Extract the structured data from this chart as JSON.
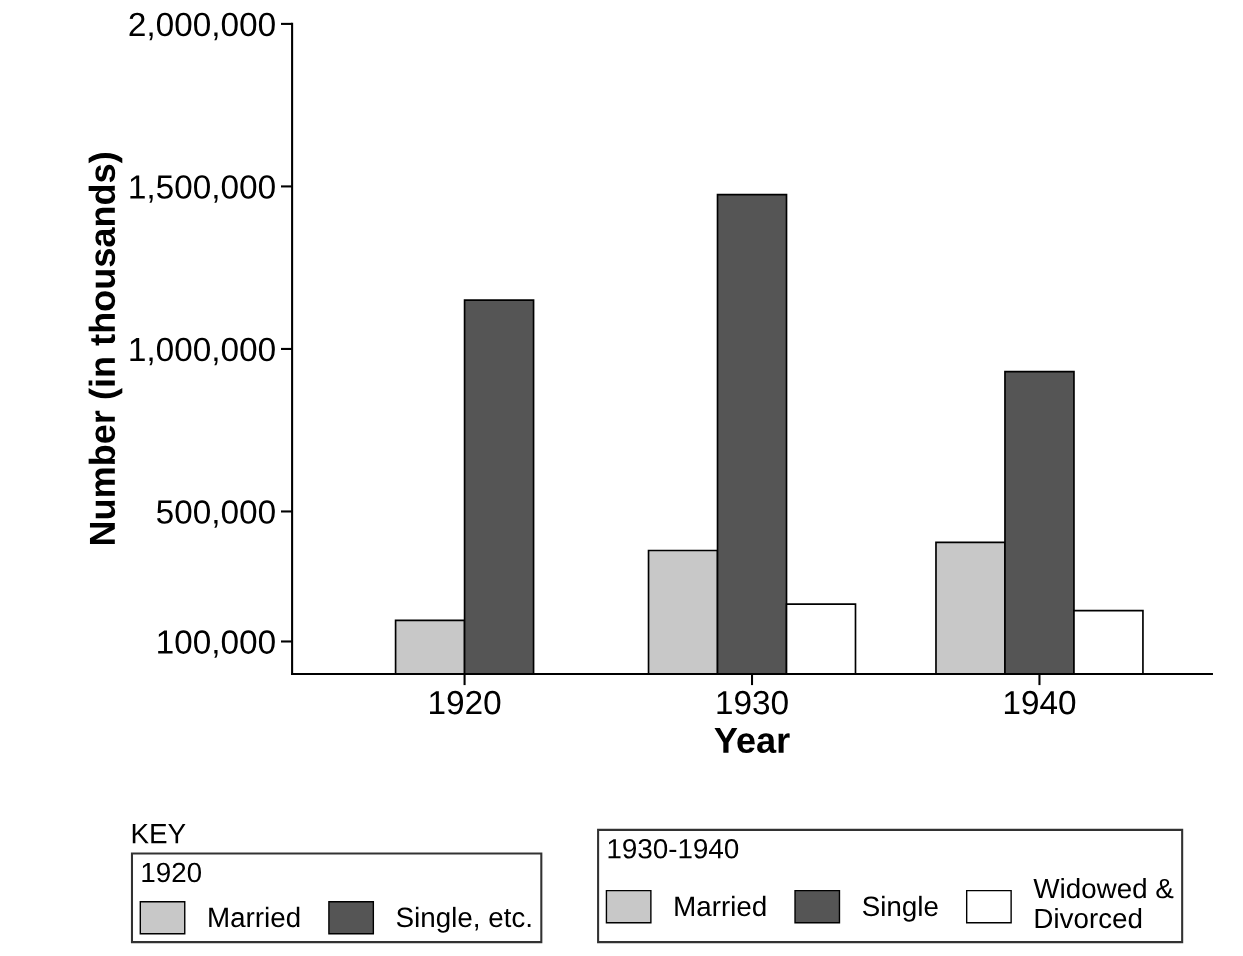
{
  "chart_data": {
    "type": "bar",
    "categories": [
      "1920",
      "1930",
      "1940"
    ],
    "xlabel": "Year",
    "ylabel": "Number (in thousands)",
    "ylim": [
      0,
      2000000
    ],
    "yticks": [
      {
        "value": 100000,
        "label": "100,000"
      },
      {
        "value": 500000,
        "label": "500,000"
      },
      {
        "value": 1000000,
        "label": "1,000,000"
      },
      {
        "value": 1500000,
        "label": "1,500,000"
      },
      {
        "value": 2000000,
        "label": "2,000,000"
      }
    ],
    "series": [
      {
        "name": "Married",
        "color": "#c8c8c8",
        "values": [
          165000,
          null,
          null
        ]
      },
      {
        "name": "Single, etc.",
        "color": "#555555",
        "values": [
          1150000,
          null,
          null
        ]
      },
      {
        "name": "Married",
        "color": "#c8c8c8",
        "values": [
          null,
          380000,
          405000
        ]
      },
      {
        "name": "Single",
        "color": "#555555",
        "values": [
          null,
          1475000,
          930000
        ]
      },
      {
        "name": "Widowed &\nDivorced",
        "color": "#ffffff",
        "values": [
          null,
          215000,
          195000
        ]
      }
    ],
    "legend": "bottom",
    "legend_title": "KEY",
    "annotations": [
      "1920",
      "1930-1940"
    ],
    "grid": false
  }
}
